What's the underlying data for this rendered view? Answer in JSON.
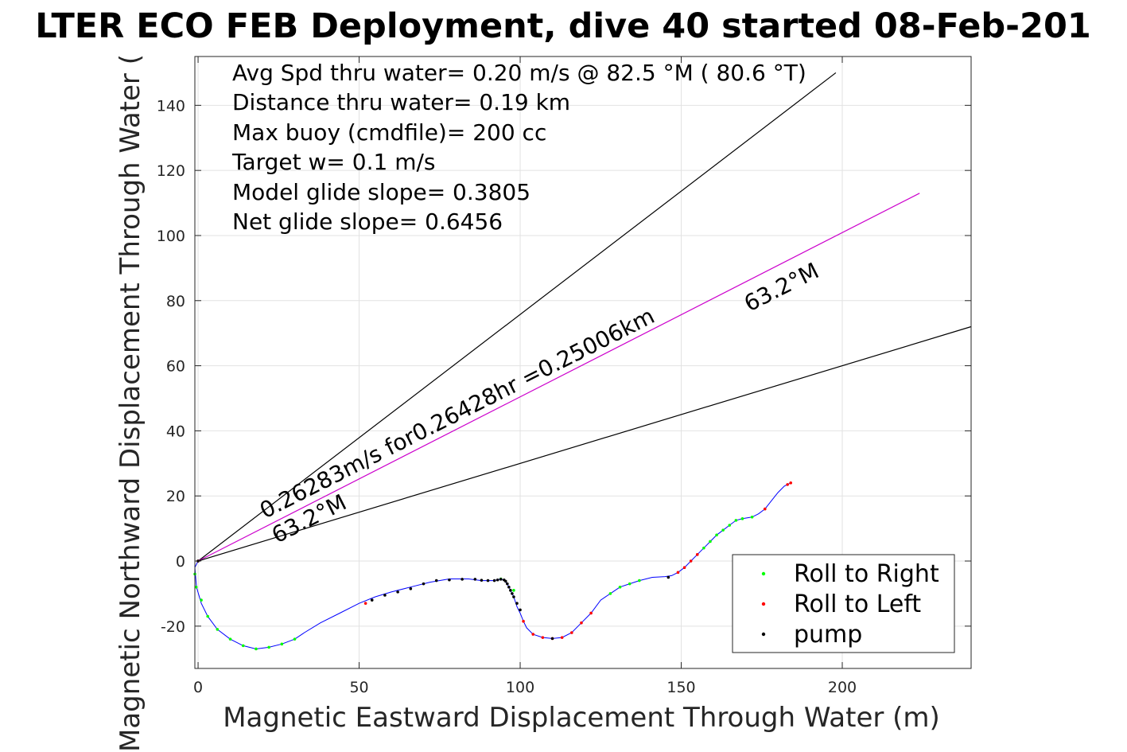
{
  "chart_data": {
    "type": "line",
    "title": "LTER ECO FEB Deployment, dive 40 started 08-Feb-201",
    "xlabel": "Magnetic Eastward Displacement Through Water (m)",
    "ylabel": "Magnetic Northward Displacement Through Water (",
    "xlim": [
      -1,
      240
    ],
    "ylim": [
      -33,
      155
    ],
    "xticks": [
      0,
      50,
      100,
      150,
      200
    ],
    "yticks": [
      -20,
      0,
      20,
      40,
      60,
      80,
      100,
      120,
      140
    ],
    "grid": true,
    "info_lines": [
      "Avg Spd thru water=  0.20 m/s @  82.5 °M ( 80.6 °T)",
      "Distance thru water=  0.19 km",
      "Max buoy (cmdfile)= 200 cc",
      "Target w= 0.1 m/s",
      "Model glide slope= 0.3805",
      "Net glide slope= 0.6456"
    ],
    "annotations": {
      "speed_label": "0.26283m/s for0.26428hr =0.25006km",
      "heading_label_lower": "63.2°M",
      "heading_label_upper": "63.2°M"
    },
    "reference_lines": [
      {
        "x": [
          0,
          198
        ],
        "y": [
          0,
          150
        ],
        "color": "#000000"
      },
      {
        "x": [
          0,
          224
        ],
        "y": [
          0,
          113
        ],
        "color": "#cc00cc"
      },
      {
        "x": [
          0,
          240
        ],
        "y": [
          0,
          72
        ],
        "color": "#000000"
      }
    ],
    "track": {
      "x": [
        0,
        -1,
        -0.5,
        1,
        3,
        6,
        10,
        14,
        18,
        22,
        26,
        30,
        33,
        38,
        44,
        50,
        55,
        60,
        66,
        72,
        78,
        84,
        88,
        92,
        94,
        95,
        96,
        97,
        98,
        99,
        100,
        101,
        102,
        104,
        107,
        110,
        113,
        116,
        119,
        122,
        125,
        128,
        131,
        134,
        137,
        141,
        145,
        147,
        149,
        151,
        153,
        155,
        157,
        159,
        161,
        163,
        165,
        167,
        169,
        172,
        174,
        176,
        178,
        180,
        182,
        184
      ],
      "y": [
        0,
        -2,
        -8,
        -13,
        -17,
        -21,
        -24,
        -26,
        -27,
        -26.5,
        -25.5,
        -24,
        -22,
        -19,
        -16,
        -13,
        -11,
        -9.5,
        -8,
        -6.5,
        -5.5,
        -5.5,
        -6,
        -6,
        -5.5,
        -6,
        -7,
        -9,
        -11,
        -14,
        -16,
        -18.5,
        -20.5,
        -22.5,
        -23.5,
        -23.8,
        -23.5,
        -22,
        -19,
        -16,
        -12,
        -10,
        -8,
        -7,
        -6,
        -5,
        -4.8,
        -4.5,
        -3.5,
        -2,
        0,
        2,
        4,
        6,
        8,
        9.5,
        11,
        12.5,
        13,
        13.5,
        14.5,
        16,
        18.5,
        21,
        23,
        24
      ],
      "color": "#0000ff"
    },
    "series": [
      {
        "name": "Roll to Right",
        "color": "#00ff00",
        "x": [
          -1,
          -0.6,
          1,
          3,
          6,
          10,
          14,
          18,
          22,
          26,
          30,
          94,
          98,
          128,
          131,
          134,
          137,
          157,
          159,
          161,
          163,
          165,
          167,
          169,
          172
        ],
        "y": [
          -4,
          -8,
          -12,
          -17,
          -21,
          -24,
          -26,
          -27,
          -26.5,
          -25.5,
          -24,
          -5.5,
          -9,
          -10,
          -8,
          -7,
          -6,
          4,
          6,
          8,
          9.5,
          11,
          12.5,
          13,
          13.5
        ]
      },
      {
        "name": "Roll to Left",
        "color": "#ff0000",
        "x": [
          0,
          52,
          101,
          104,
          107,
          110,
          113,
          116,
          119,
          122,
          149,
          151,
          153,
          155,
          176,
          183,
          184
        ],
        "y": [
          0,
          -13,
          -18.5,
          -22.5,
          -23.5,
          -23.8,
          -23.5,
          -22,
          -19,
          -16,
          -3.5,
          -2,
          0,
          2,
          16,
          23.5,
          24
        ]
      },
      {
        "name": "pump",
        "color": "#000000",
        "x": [
          0,
          54,
          58,
          62,
          66,
          70,
          74,
          78,
          82,
          86,
          88,
          90,
          92,
          93,
          94,
          95,
          95.5,
          96,
          96.5,
          97,
          97.5,
          98,
          99,
          100,
          110,
          146
        ],
        "y": [
          0,
          -12,
          -10.5,
          -9.5,
          -8.5,
          -7,
          -6,
          -5.8,
          -5.6,
          -5.6,
          -5.9,
          -6,
          -6,
          -5.8,
          -5.6,
          -5.8,
          -6.2,
          -7,
          -8,
          -9,
          -10,
          -11,
          -13,
          -15,
          -23.8,
          -5
        ]
      }
    ],
    "legend": {
      "location": "bottom-right",
      "entries": [
        "Roll to Right",
        "Roll to Left",
        "pump"
      ]
    }
  }
}
